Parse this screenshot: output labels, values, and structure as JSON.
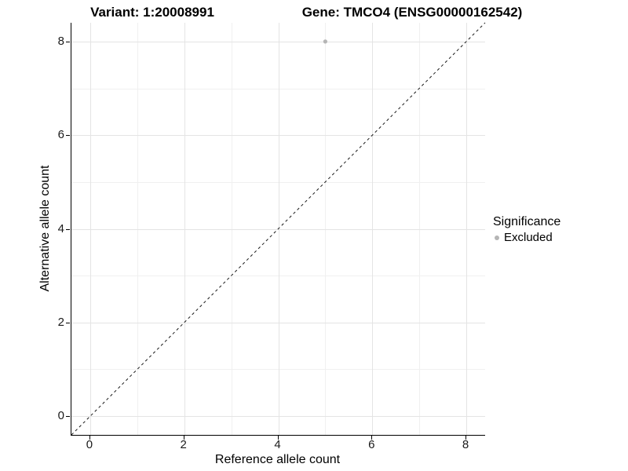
{
  "titles": {
    "left": "Variant: 1:20008991",
    "right": "Gene: TMCO4 (ENSG00000162542)"
  },
  "chart_data": {
    "type": "scatter",
    "title_left": "Variant: 1:20008991",
    "title_right": "Gene: TMCO4 (ENSG00000162542)",
    "xlabel": "Reference allele count",
    "ylabel": "Alternative allele count",
    "xlim": [
      -0.4,
      8.4
    ],
    "ylim": [
      -0.4,
      8.4
    ],
    "x_ticks": [
      0,
      2,
      4,
      6,
      8
    ],
    "y_ticks": [
      0,
      2,
      4,
      6,
      8
    ],
    "x_minor_ticks": [
      1,
      3,
      5,
      7
    ],
    "y_minor_ticks": [
      1,
      3,
      5,
      7
    ],
    "grid": {
      "major_color": "#e4e4e4",
      "minor_color": "#f0f0f0",
      "grid_on": true
    },
    "identity_line": {
      "show": true,
      "style": "dashed",
      "color": "#1a1a1a"
    },
    "series": [
      {
        "name": "Excluded",
        "color": "#b5b5b5",
        "points": [
          {
            "x": 5,
            "y": 8
          }
        ]
      }
    ],
    "legend": {
      "title": "Significance",
      "position": "right",
      "items": [
        {
          "label": "Excluded",
          "color": "#b5b5b5"
        }
      ]
    }
  }
}
